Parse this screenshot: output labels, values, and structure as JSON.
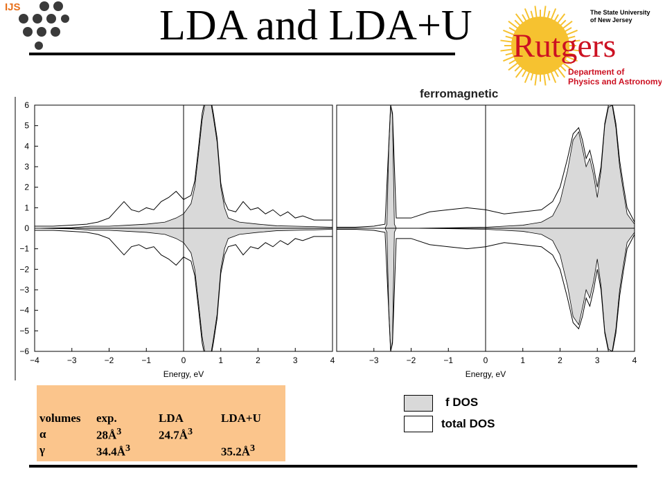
{
  "header": {
    "logo_text": "IJS",
    "title": "LDA and LDA+U",
    "rutgers_university": [
      "The State University",
      "of New Jersey"
    ],
    "rutgers_name": "Rutgers",
    "rutgers_department": [
      "Department of",
      "Physics and Astronomy"
    ]
  },
  "subtitle": "ferromagnetic",
  "volumes_table": {
    "headers": [
      "volumes",
      "exp.",
      "LDA",
      "LDA+U"
    ],
    "rows": [
      {
        "phase": "α",
        "exp": "28Å",
        "lda": "24.7Å",
        "ldau": ""
      },
      {
        "phase": "γ",
        "exp": "34.4Å",
        "lda": "",
        "ldau": "35.2Å"
      }
    ],
    "superscript": "3"
  },
  "legend": [
    {
      "label": "f DOS",
      "fill": "#d9d9d9"
    },
    {
      "label": "total DOS",
      "fill": "#ffffff"
    }
  ],
  "chart_data": [
    {
      "type": "area",
      "panel": "LDA",
      "xlabel": "Energy, eV",
      "xlim": [
        -4,
        4
      ],
      "ylim": [
        -6,
        6
      ],
      "xticks": [
        -4,
        -3,
        -2,
        -1,
        0,
        1,
        2,
        3,
        4
      ],
      "yticks": [
        6,
        5,
        4,
        3,
        2,
        1,
        0,
        -1,
        -2,
        -3,
        -4,
        -5,
        -6
      ],
      "series": [
        {
          "name": "f DOS",
          "x": [
            -4,
            -3,
            -2.5,
            -2,
            -1.5,
            -1,
            -0.5,
            -0.2,
            0,
            0.2,
            0.3,
            0.4,
            0.5,
            0.6,
            0.7,
            0.8,
            0.9,
            1.0,
            1.1,
            1.2,
            1.5,
            2,
            2.5,
            3,
            3.5,
            4
          ],
          "y": [
            0,
            0.03,
            0.1,
            0.1,
            0.15,
            0.2,
            0.3,
            0.5,
            0.7,
            1.2,
            2.0,
            3.6,
            5.3,
            6.3,
            6.5,
            5.4,
            4.2,
            2.0,
            1.0,
            0.5,
            0.3,
            0.2,
            0.12,
            0.1,
            0.08,
            0.05
          ]
        },
        {
          "name": "total DOS",
          "x": [
            -4,
            -3.5,
            -3,
            -2.6,
            -2.3,
            -2.0,
            -1.8,
            -1.6,
            -1.4,
            -1.2,
            -1.0,
            -0.8,
            -0.6,
            -0.4,
            -0.2,
            0,
            0.2,
            0.3,
            0.4,
            0.5,
            0.6,
            0.7,
            0.8,
            0.9,
            1.0,
            1.1,
            1.2,
            1.4,
            1.6,
            1.8,
            2.0,
            2.2,
            2.4,
            2.6,
            2.8,
            3.0,
            3.2,
            3.5,
            4
          ],
          "y": [
            0.1,
            0.1,
            0.15,
            0.2,
            0.3,
            0.5,
            0.9,
            1.3,
            0.9,
            0.8,
            1.0,
            0.9,
            1.3,
            1.5,
            1.8,
            1.4,
            1.6,
            2.3,
            3.9,
            5.6,
            6.5,
            6.6,
            5.6,
            4.4,
            2.2,
            1.3,
            0.9,
            0.8,
            1.3,
            0.9,
            1.0,
            0.7,
            0.9,
            0.6,
            0.8,
            0.5,
            0.6,
            0.4,
            0.4
          ]
        }
      ]
    },
    {
      "type": "area",
      "panel": "LDA+U",
      "xlabel": "Energy, eV",
      "xlim": [
        -4,
        4
      ],
      "ylim": [
        -6,
        6
      ],
      "xticks": [
        -3,
        -2,
        -1,
        0,
        1,
        2,
        3,
        4
      ],
      "series": [
        {
          "name": "f DOS",
          "x": [
            -4,
            -3,
            -2.7,
            -2.65,
            -2.6,
            -2.55,
            -2.5,
            -2.45,
            -2.4,
            -2,
            -1,
            0,
            0.5,
            1,
            1.5,
            1.8,
            2.0,
            2.2,
            2.35,
            2.5,
            2.6,
            2.7,
            2.8,
            2.9,
            3.0,
            3.1,
            3.2,
            3.3,
            3.4,
            3.5,
            3.6,
            3.7,
            3.8,
            4
          ],
          "y": [
            0,
            0,
            0,
            0.2,
            4,
            6,
            5.5,
            0.2,
            0,
            0,
            0.02,
            0.05,
            0.1,
            0.15,
            0.3,
            0.6,
            1.3,
            2.8,
            4.3,
            4.7,
            3.9,
            3.0,
            3.4,
            2.6,
            1.5,
            2.8,
            5.0,
            5.9,
            6.0,
            4.9,
            3.0,
            1.8,
            0.7,
            0.2
          ]
        },
        {
          "name": "total DOS",
          "x": [
            -4,
            -3.5,
            -3,
            -2.7,
            -2.55,
            -2.5,
            -2.4,
            -2,
            -1.5,
            -1,
            -0.5,
            0,
            0.5,
            1,
            1.5,
            1.8,
            2.0,
            2.2,
            2.35,
            2.5,
            2.6,
            2.7,
            2.8,
            2.9,
            3.0,
            3.1,
            3.2,
            3.3,
            3.4,
            3.5,
            3.6,
            3.7,
            3.8,
            4
          ],
          "y": [
            0.05,
            0.05,
            0.1,
            0.2,
            6,
            5.6,
            0.5,
            0.5,
            0.8,
            0.9,
            1.0,
            0.9,
            0.7,
            0.8,
            0.9,
            1.3,
            2.0,
            3.4,
            4.6,
            4.9,
            4.3,
            3.4,
            3.8,
            3.0,
            2.0,
            3.0,
            5.1,
            6.0,
            6.1,
            5.1,
            3.3,
            2.1,
            1.0,
            0.3
          ]
        }
      ]
    }
  ]
}
